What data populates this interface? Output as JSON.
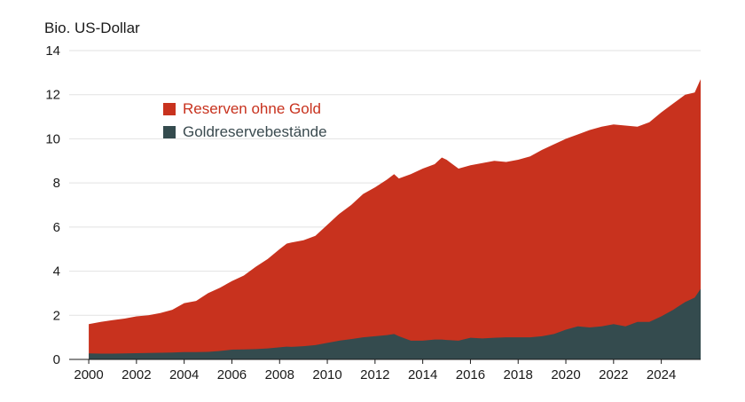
{
  "chart_data": {
    "type": "area",
    "stacked": true,
    "ylabel": "Bio. US-Dollar",
    "ylim": [
      0,
      14
    ],
    "yticks": [
      "0",
      "2",
      "4",
      "6",
      "8",
      "10",
      "12",
      "14"
    ],
    "xlim": [
      1999.7,
      2025.65
    ],
    "xticks": [
      "2000",
      "2002",
      "2004",
      "2006",
      "2008",
      "2010",
      "2012",
      "2014",
      "2016",
      "2018",
      "2020",
      "2022",
      "2024"
    ],
    "legend_position": "top-left",
    "series": [
      {
        "name": "Reserven ohne Gold",
        "label_color": "#c8321e",
        "color": "#c8321e",
        "role": "total"
      },
      {
        "name": "Goldreservebestände",
        "label_color": "#3a4a4f",
        "color": "#344b4e",
        "role": "gold"
      }
    ],
    "x": [
      2000.0,
      2000.5,
      2001.0,
      2001.5,
      2002.0,
      2002.5,
      2003.0,
      2003.5,
      2004.0,
      2004.5,
      2005.0,
      2005.5,
      2006.0,
      2006.5,
      2007.0,
      2007.5,
      2008.0,
      2008.3,
      2008.5,
      2009.0,
      2009.5,
      2010.0,
      2010.5,
      2011.0,
      2011.5,
      2012.0,
      2012.5,
      2012.8,
      2013.0,
      2013.5,
      2014.0,
      2014.5,
      2014.8,
      2015.0,
      2015.5,
      2016.0,
      2016.5,
      2017.0,
      2017.5,
      2018.0,
      2018.5,
      2019.0,
      2019.5,
      2020.0,
      2020.5,
      2021.0,
      2021.5,
      2022.0,
      2022.5,
      2023.0,
      2023.5,
      2024.0,
      2024.5,
      2025.0,
      2025.4,
      2025.65
    ],
    "total": [
      1.6,
      1.7,
      1.78,
      1.85,
      1.95,
      2.0,
      2.1,
      2.25,
      2.55,
      2.65,
      3.0,
      3.25,
      3.55,
      3.8,
      4.2,
      4.55,
      5.0,
      5.25,
      5.3,
      5.4,
      5.6,
      6.1,
      6.6,
      7.0,
      7.5,
      7.8,
      8.15,
      8.4,
      8.2,
      8.4,
      8.65,
      8.85,
      9.15,
      9.05,
      8.65,
      8.8,
      8.9,
      9.0,
      8.95,
      9.05,
      9.2,
      9.5,
      9.75,
      10.0,
      10.2,
      10.4,
      10.55,
      10.65,
      10.6,
      10.55,
      10.75,
      11.2,
      11.6,
      12.0,
      12.1,
      12.7
    ],
    "gold": [
      0.27,
      0.26,
      0.26,
      0.27,
      0.28,
      0.29,
      0.3,
      0.31,
      0.33,
      0.33,
      0.34,
      0.38,
      0.44,
      0.45,
      0.47,
      0.5,
      0.55,
      0.58,
      0.57,
      0.6,
      0.65,
      0.75,
      0.85,
      0.92,
      1.0,
      1.05,
      1.1,
      1.15,
      1.05,
      0.85,
      0.85,
      0.9,
      0.9,
      0.88,
      0.85,
      0.98,
      0.95,
      0.98,
      1.0,
      1.0,
      1.0,
      1.05,
      1.15,
      1.35,
      1.5,
      1.45,
      1.5,
      1.6,
      1.5,
      1.7,
      1.7,
      1.95,
      2.25,
      2.6,
      2.8,
      3.2
    ]
  }
}
